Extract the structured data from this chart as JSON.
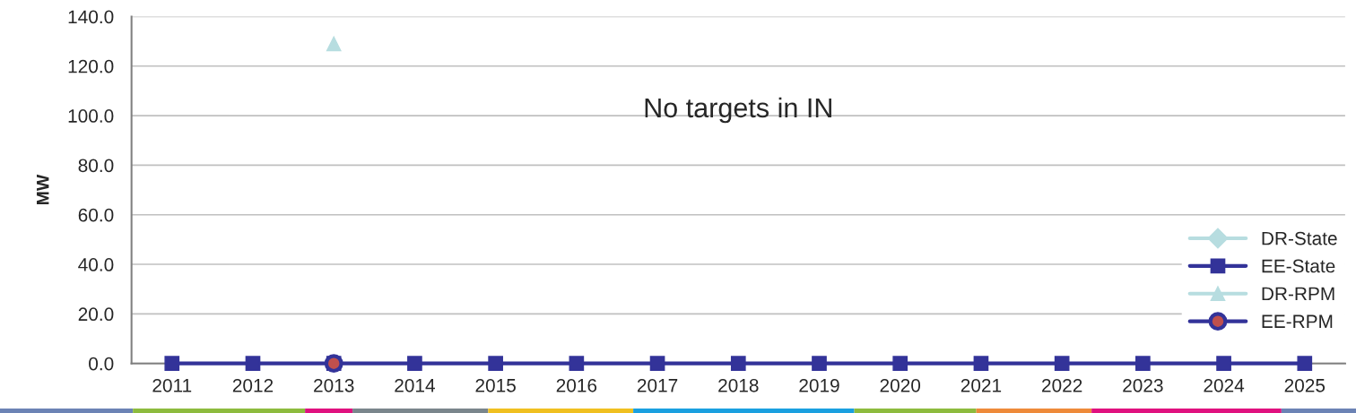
{
  "chart_data": {
    "type": "line",
    "ylabel": "MW",
    "categories": [
      "2011",
      "2012",
      "2013",
      "2014",
      "2015",
      "2016",
      "2017",
      "2018",
      "2019",
      "2020",
      "2021",
      "2022",
      "2023",
      "2024",
      "2025"
    ],
    "series": [
      {
        "name": "DR-State",
        "color": "#b7dde0",
        "marker": "diamond",
        "values": [
          null,
          null,
          null,
          null,
          null,
          null,
          null,
          null,
          null,
          null,
          null,
          null,
          null,
          null,
          null
        ]
      },
      {
        "name": "EE-State",
        "color": "#333399",
        "marker": "square",
        "values": [
          0,
          0,
          0,
          0,
          0,
          0,
          0,
          0,
          0,
          0,
          0,
          0,
          0,
          0,
          0
        ]
      },
      {
        "name": "DR-RPM",
        "color": "#b7dde0",
        "marker": "triangle",
        "values": [
          null,
          null,
          129,
          null,
          null,
          null,
          null,
          null,
          null,
          null,
          null,
          null,
          null,
          null,
          null
        ]
      },
      {
        "name": "EE-RPM",
        "color": "#333399",
        "marker": "circle",
        "values": [
          null,
          null,
          0,
          null,
          null,
          null,
          null,
          null,
          null,
          null,
          null,
          null,
          null,
          null,
          null
        ]
      }
    ],
    "ylim": [
      0,
      140
    ],
    "yticks": [
      {
        "value": 0,
        "label": "0.0"
      },
      {
        "value": 20,
        "label": "20.0"
      },
      {
        "value": 40,
        "label": "40.0"
      },
      {
        "value": 60,
        "label": "60.0"
      },
      {
        "value": 80,
        "label": "80.0"
      },
      {
        "value": 100,
        "label": "100.0"
      },
      {
        "value": 120,
        "label": "120.0"
      },
      {
        "value": 140,
        "label": "140.0"
      }
    ],
    "grid": "y",
    "legend": "bottom right",
    "annotations": [
      "No targets in IN"
    ]
  }
}
